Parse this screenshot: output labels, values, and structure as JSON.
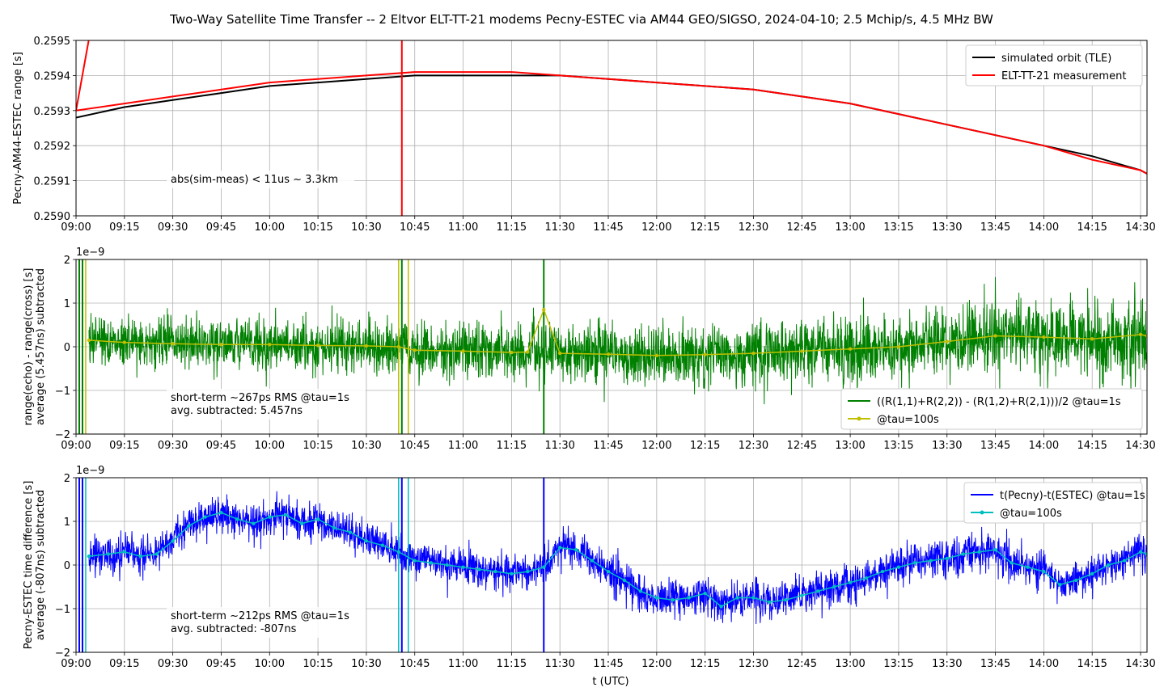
{
  "title": "Two-Way Satellite Time Transfer -- 2 Eltvor ELT-TT-21 modems Pecny-ESTEC via AM44 GEO/SIGSO, 2024-04-10; 2.5 Mchip/s, 4.5 MHz BW",
  "xlabel": "t (UTC)",
  "colors": {
    "black": "#000000",
    "red": "#ff0000",
    "green": "#008000",
    "olive": "#bfbf00",
    "blue": "#0000ff",
    "cyan": "#00bfbf"
  },
  "chart_data": [
    {
      "type": "line",
      "ylabel": "Pecny-AM44-ESTEC range [s]",
      "xlim": [
        "09:00",
        "14:32"
      ],
      "ylim": [
        0.259,
        0.2595
      ],
      "x_ticks": [
        "09:00",
        "09:15",
        "09:30",
        "09:45",
        "10:00",
        "10:15",
        "10:30",
        "10:45",
        "11:00",
        "11:15",
        "11:30",
        "11:45",
        "12:00",
        "12:15",
        "12:30",
        "12:45",
        "13:00",
        "13:15",
        "13:30",
        "13:45",
        "14:00",
        "14:15",
        "14:30"
      ],
      "y_ticks": [
        "0.2590",
        "0.2591",
        "0.2592",
        "0.2593",
        "0.2594",
        "0.2595"
      ],
      "grid": true,
      "legend_position": "top-right",
      "annotation": "abs(sim-meas) < 11us ~ 3.3km",
      "series": [
        {
          "name": "simulated orbit (TLE)",
          "color": "#000000",
          "x": [
            "09:00",
            "09:15",
            "09:30",
            "09:45",
            "10:00",
            "10:15",
            "10:30",
            "10:45",
            "11:00",
            "11:15",
            "11:30",
            "11:45",
            "12:00",
            "12:15",
            "12:30",
            "12:45",
            "13:00",
            "13:15",
            "13:30",
            "13:45",
            "14:00",
            "14:15",
            "14:30",
            "14:32"
          ],
          "y": [
            0.25928,
            0.25931,
            0.25933,
            0.25935,
            0.25937,
            0.25938,
            0.25939,
            0.2594,
            0.2594,
            0.2594,
            0.2594,
            0.25939,
            0.25938,
            0.25937,
            0.25936,
            0.25934,
            0.25932,
            0.25929,
            0.25926,
            0.25923,
            0.2592,
            0.25917,
            0.25913,
            0.25912
          ]
        },
        {
          "name": "ELT-TT-21 measurement",
          "color": "#ff0000",
          "x": [
            "09:00",
            "09:15",
            "09:30",
            "09:45",
            "10:00",
            "10:15",
            "10:30",
            "10:45",
            "11:00",
            "11:15",
            "11:30",
            "11:45",
            "12:00",
            "12:15",
            "12:30",
            "12:45",
            "13:00",
            "13:15",
            "13:30",
            "13:45",
            "14:00",
            "14:15",
            "14:30",
            "14:32"
          ],
          "y": [
            0.2593,
            0.25932,
            0.25934,
            0.25936,
            0.25938,
            0.25939,
            0.2594,
            0.25941,
            0.25941,
            0.25941,
            0.2594,
            0.25939,
            0.25938,
            0.25937,
            0.25936,
            0.25934,
            0.25932,
            0.25929,
            0.25926,
            0.25923,
            0.2592,
            0.25916,
            0.25913,
            0.25912
          ]
        }
      ]
    },
    {
      "type": "line",
      "ylabel": "range(echo) - range(cross) [s]",
      "ylabel2": "average (5.457ns) subtracted",
      "exponent": "1e−9",
      "xlim": [
        "09:00",
        "14:32"
      ],
      "ylim": [
        -2,
        2
      ],
      "y_ticks": [
        "−2",
        "−1",
        "0",
        "1",
        "2"
      ],
      "grid": true,
      "legend_position": "bottom-right",
      "annotation_lines": [
        "short-term ~267ps RMS @tau=1s",
        "avg. subtracted: 5.457ns"
      ],
      "series": [
        {
          "name": "((R(1,1)+R(2,2)) - (R(1,2)+R(2,1)))/2 @tau=1s",
          "color": "#008000",
          "rms": 0.267,
          "spikes": [
            "09:01",
            "10:41",
            "11:25"
          ]
        },
        {
          "name": "@tau=100s",
          "color": "#bfbf00",
          "x": [
            "09:04",
            "09:15",
            "09:30",
            "09:45",
            "10:00",
            "10:15",
            "10:30",
            "10:40",
            "10:45",
            "11:00",
            "11:15",
            "11:20",
            "11:25",
            "11:30",
            "11:45",
            "12:00",
            "12:15",
            "12:30",
            "12:45",
            "13:00",
            "13:15",
            "13:30",
            "13:45",
            "14:00",
            "14:15",
            "14:30",
            "14:32"
          ],
          "y": [
            0.15,
            0.1,
            0.07,
            0.05,
            0.05,
            0.03,
            0.02,
            0.0,
            -0.08,
            -0.1,
            -0.13,
            -0.12,
            0.85,
            -0.15,
            -0.17,
            -0.2,
            -0.18,
            -0.15,
            -0.1,
            -0.05,
            0.0,
            0.12,
            0.25,
            0.22,
            0.18,
            0.28,
            0.25
          ]
        }
      ]
    },
    {
      "type": "line",
      "ylabel": "Pecny-ESTEC time difference [s]",
      "ylabel2": "average (-807ns) subtracted",
      "exponent": "1e−9",
      "xlim": [
        "09:00",
        "14:32"
      ],
      "ylim": [
        -2,
        2
      ],
      "y_ticks": [
        "−2",
        "−1",
        "0",
        "1",
        "2"
      ],
      "grid": true,
      "legend_position": "top-right",
      "annotation_lines": [
        "short-term ~212ps RMS @tau=1s",
        "avg. subtracted: -807ns"
      ],
      "series": [
        {
          "name": "t(Pecny)-t(ESTEC) @tau=1s",
          "color": "#0000ff",
          "rms": 0.212,
          "spikes": [
            "09:01",
            "10:41",
            "11:25"
          ]
        },
        {
          "name": "@tau=100s",
          "color": "#00bfbf",
          "x": [
            "09:04",
            "09:10",
            "09:15",
            "09:20",
            "09:25",
            "09:30",
            "09:35",
            "09:40",
            "09:45",
            "09:50",
            "09:55",
            "10:00",
            "10:05",
            "10:10",
            "10:15",
            "10:20",
            "10:25",
            "10:30",
            "10:35",
            "10:40",
            "10:45",
            "10:50",
            "10:55",
            "11:00",
            "11:05",
            "11:10",
            "11:15",
            "11:20",
            "11:25",
            "11:30",
            "11:35",
            "11:40",
            "11:45",
            "11:50",
            "11:55",
            "12:00",
            "12:05",
            "12:10",
            "12:15",
            "12:20",
            "12:25",
            "12:30",
            "12:35",
            "12:40",
            "12:45",
            "12:50",
            "12:55",
            "13:00",
            "13:05",
            "13:10",
            "13:15",
            "13:20",
            "13:25",
            "13:30",
            "13:35",
            "13:40",
            "13:45",
            "13:50",
            "13:55",
            "14:00",
            "14:05",
            "14:10",
            "14:15",
            "14:20",
            "14:25",
            "14:30",
            "14:32"
          ],
          "y": [
            0.2,
            0.25,
            0.3,
            0.2,
            0.25,
            0.55,
            0.9,
            1.1,
            1.2,
            1.05,
            0.95,
            1.1,
            1.15,
            0.95,
            1.05,
            0.85,
            0.75,
            0.55,
            0.45,
            0.3,
            0.1,
            0.05,
            0.0,
            -0.05,
            -0.1,
            -0.15,
            -0.2,
            -0.15,
            -0.05,
            0.4,
            0.35,
            0.1,
            -0.15,
            -0.35,
            -0.6,
            -0.75,
            -0.8,
            -0.75,
            -0.65,
            -0.95,
            -0.75,
            -0.75,
            -0.85,
            -0.8,
            -0.7,
            -0.6,
            -0.5,
            -0.4,
            -0.3,
            -0.15,
            -0.05,
            0.05,
            0.1,
            0.15,
            0.25,
            0.3,
            0.35,
            0.05,
            -0.05,
            -0.15,
            -0.45,
            -0.35,
            -0.2,
            0.0,
            0.1,
            0.3,
            0.25
          ]
        }
      ]
    }
  ]
}
